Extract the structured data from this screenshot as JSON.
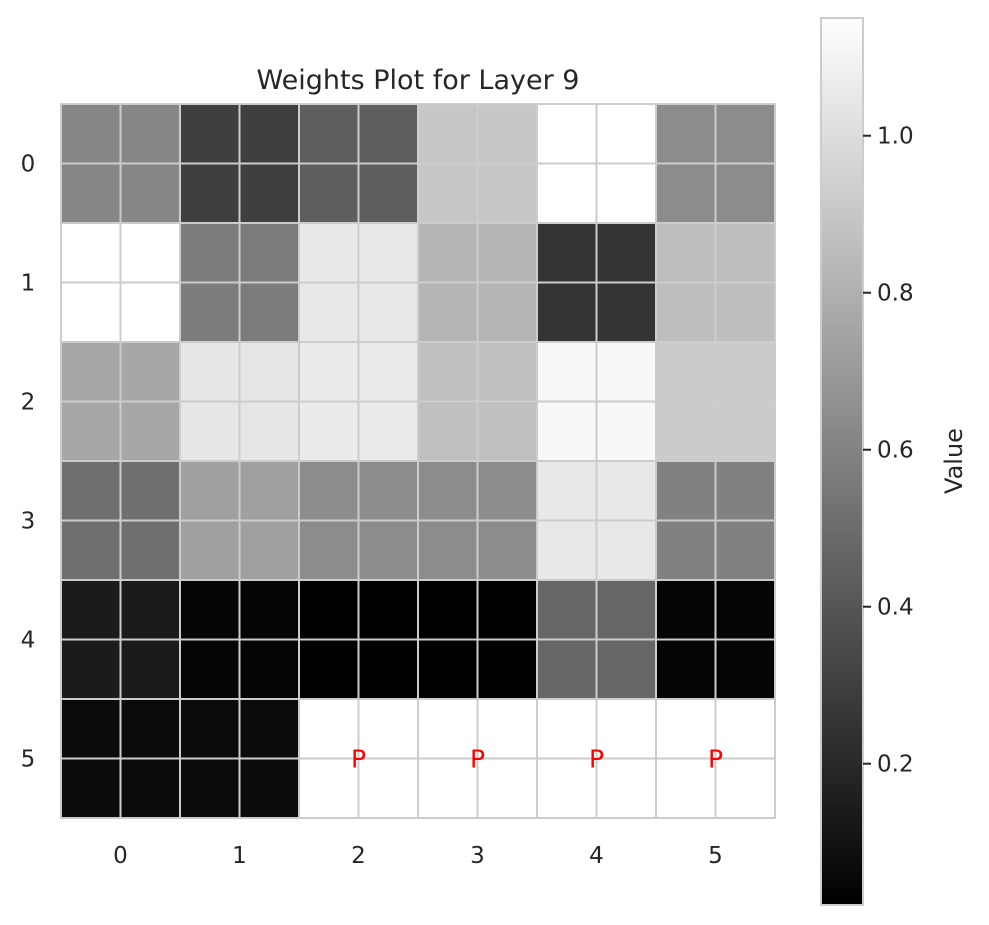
{
  "chart_data": {
    "type": "heatmap",
    "title": "Weights Plot for Layer 9",
    "xlabel": "",
    "ylabel": "",
    "x_ticks": [
      "0",
      "1",
      "2",
      "3",
      "4",
      "5"
    ],
    "y_ticks": [
      "0",
      "1",
      "2",
      "3",
      "4",
      "5"
    ],
    "colormap": "gray",
    "grid": true,
    "grid_color": "#cccccc",
    "vmin": 0.02,
    "vmax": 1.15,
    "values": [
      [
        0.62,
        0.3,
        0.44,
        0.9,
        1.15,
        0.64
      ],
      [
        1.15,
        0.57,
        1.05,
        0.82,
        0.25,
        0.86
      ],
      [
        0.76,
        1.04,
        1.06,
        0.87,
        1.12,
        0.92
      ],
      [
        0.51,
        0.73,
        0.64,
        0.64,
        1.05,
        0.59
      ],
      [
        0.14,
        0.04,
        0.02,
        0.02,
        0.47,
        0.04
      ],
      [
        0.07,
        0.07,
        null,
        null,
        null,
        null
      ]
    ],
    "annotations": [
      {
        "row": 5,
        "col": 2,
        "text": "P",
        "color": "#ff0000"
      },
      {
        "row": 5,
        "col": 3,
        "text": "P",
        "color": "#ff0000"
      },
      {
        "row": 5,
        "col": 4,
        "text": "P",
        "color": "#ff0000"
      },
      {
        "row": 5,
        "col": 5,
        "text": "P",
        "color": "#ff0000"
      }
    ],
    "padding_color": "#ffffff",
    "colorbar": {
      "label": "Value",
      "ticks": [
        0.2,
        0.4,
        0.6,
        0.8,
        1.0
      ],
      "tick_labels": [
        "0.2",
        "0.4",
        "0.6",
        "0.8",
        "1.0"
      ],
      "placement": "right"
    }
  }
}
